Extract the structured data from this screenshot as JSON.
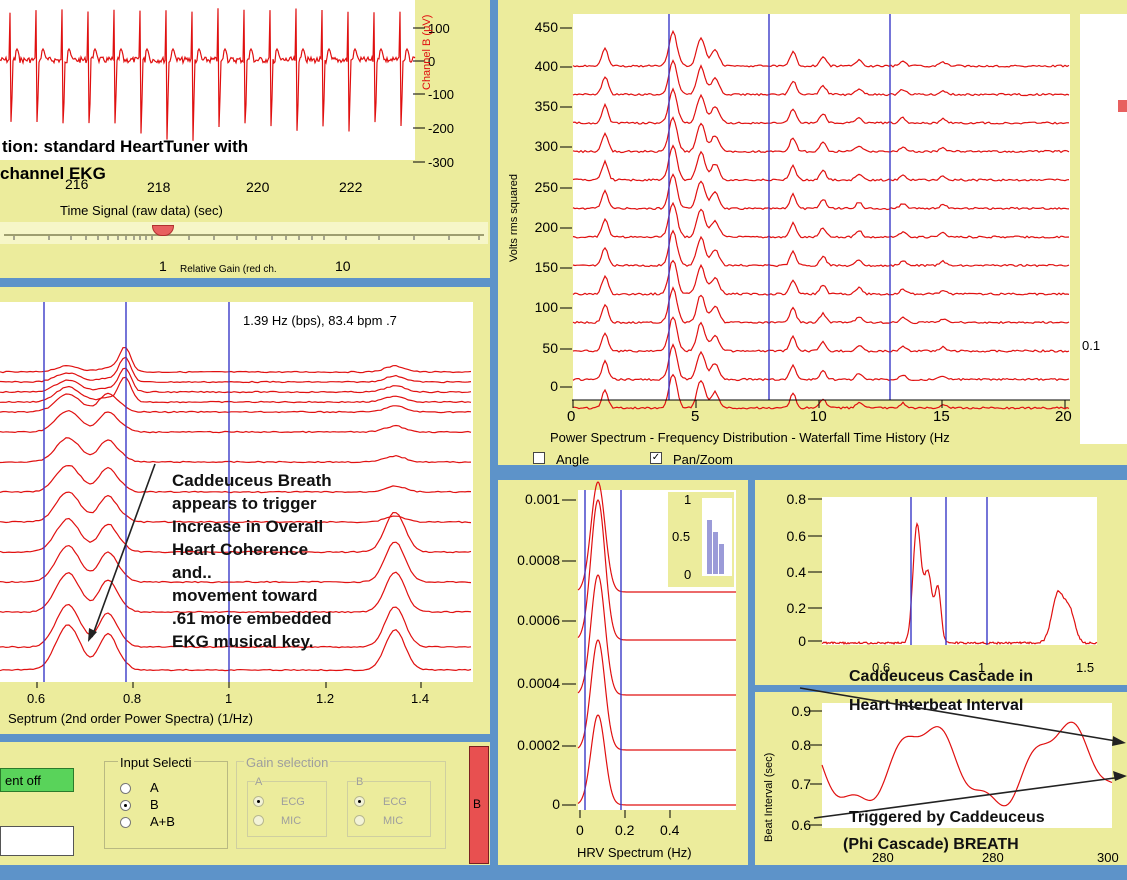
{
  "colors": {
    "background": "#5d93c9",
    "panel": "#ecec9c",
    "plot": "#ffffff",
    "trace": "#e01010",
    "marker": "#3a3ac8",
    "button_red": "#e85050",
    "button_green": "#59d35a"
  },
  "time_panel": {
    "caption_line1": "tion: standard HeartTuner with",
    "caption_line2": "channel EKG",
    "x_ticks": [
      "216",
      "218",
      "220",
      "222"
    ],
    "x_label": "Time Signal (raw data) (sec)",
    "y_ticks": [
      "100",
      "0",
      "-100",
      "-200",
      "-300"
    ],
    "y_label": "Channel B (μV)",
    "gain_min": "1",
    "gain_label": "Relative Gain (red ch.",
    "gain_max": "10"
  },
  "cepstrum_panel": {
    "readout": "1.39 Hz (bps),  83.4 bpm  .7",
    "x_ticks": [
      "0.6",
      "0.8",
      "1",
      "1.2",
      "1.4"
    ],
    "x_label": "Septrum (2nd order Power Spectra) (1/Hz)",
    "annotation": [
      "Caddeuceus Breath",
      "appears to trigger",
      "Increase in Overall",
      "Heart Coherence",
      "and..",
      "movement toward",
      ".61 more embedded",
      "EKG musical key."
    ]
  },
  "waterfall_panel": {
    "y_label": "Volts rms squared",
    "y_ticks": [
      "450",
      "400",
      "350",
      "300",
      "250",
      "200",
      "150",
      "100",
      "50",
      "0"
    ],
    "x_ticks": [
      "0",
      "5",
      "10",
      "15",
      "20"
    ],
    "x_label": "Power Spectrum - Frequency Distribution - Waterfall Time History (Hz",
    "angle_label": "Angle",
    "pan_label": "Pan/Zoom",
    "right_tick": "0.1"
  },
  "hrv_panel": {
    "y_ticks": [
      "0.001",
      "0.0008",
      "0.0006",
      "0.0004",
      "0.0002",
      "0"
    ],
    "x_ticks": [
      "0",
      "0.2",
      "0.4"
    ],
    "x_label": "HRV Spectrum (Hz)",
    "inset_ticks": [
      "1",
      "0.5",
      "0"
    ]
  },
  "cascade_panel": {
    "y_ticks": [
      "0.8",
      "0.6",
      "0.4",
      "0.2",
      "0"
    ],
    "x_ticks": [
      "0.6",
      "1",
      "1.5"
    ]
  },
  "interbeat_panel": {
    "y_ticks": [
      "0.9",
      "0.8",
      "0.7",
      "0.6"
    ],
    "y_label": "Beat Interval (sec)",
    "x_ticks": [
      "280",
      "280",
      "300"
    ],
    "title_line1": "Caddeuceus Cascade in",
    "title_line2": "Heart  Interbeat Interval",
    "footer_line1": "Triggered by Caddeuceus",
    "footer_line2": "(Phi Cascade) BREATH"
  },
  "controls": {
    "toggle_label": "ent off",
    "input_group_label": "Input Selecti",
    "input_options": [
      "A",
      "B",
      "A+B"
    ],
    "input_selected": "B",
    "gain_group_label": "Gain selection",
    "gain_col_a": "A",
    "gain_col_b": "B",
    "gain_options": [
      "ECG",
      "MIC"
    ],
    "channel_button": "B"
  }
}
